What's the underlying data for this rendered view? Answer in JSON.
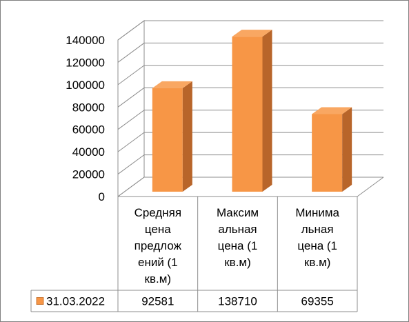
{
  "chart_data": {
    "type": "bar",
    "categories": [
      "Средняя цена предложений (1 кв.м)",
      "Максимальная цена (1 кв.м)",
      "Минимальная цена (1 кв.м)"
    ],
    "category_label_lines": [
      [
        "Средняя",
        "цена",
        "предлож",
        "ений (1",
        "кв.м)"
      ],
      [
        "Максим",
        "альная",
        "цена (1",
        "кв.м)"
      ],
      [
        "Минима",
        "льная",
        "цена (1",
        "кв.м)"
      ]
    ],
    "series": [
      {
        "name": "31.03.2022",
        "values": [
          92581,
          138710,
          69355
        ]
      }
    ],
    "data_table_values": [
      "92581",
      "138710",
      "69355"
    ],
    "y_ticks": [
      "0",
      "20000",
      "40000",
      "60000",
      "80000",
      "100000",
      "120000",
      "140000"
    ],
    "ylim": [
      0,
      140000
    ],
    "grid": true,
    "legend": "data-table",
    "colors": {
      "bar_front": "#f79646",
      "bar_side": "#b8652a",
      "bar_top": "#f9a762",
      "gridline": "#8c8c8c",
      "legend_key": "#f79646"
    }
  }
}
